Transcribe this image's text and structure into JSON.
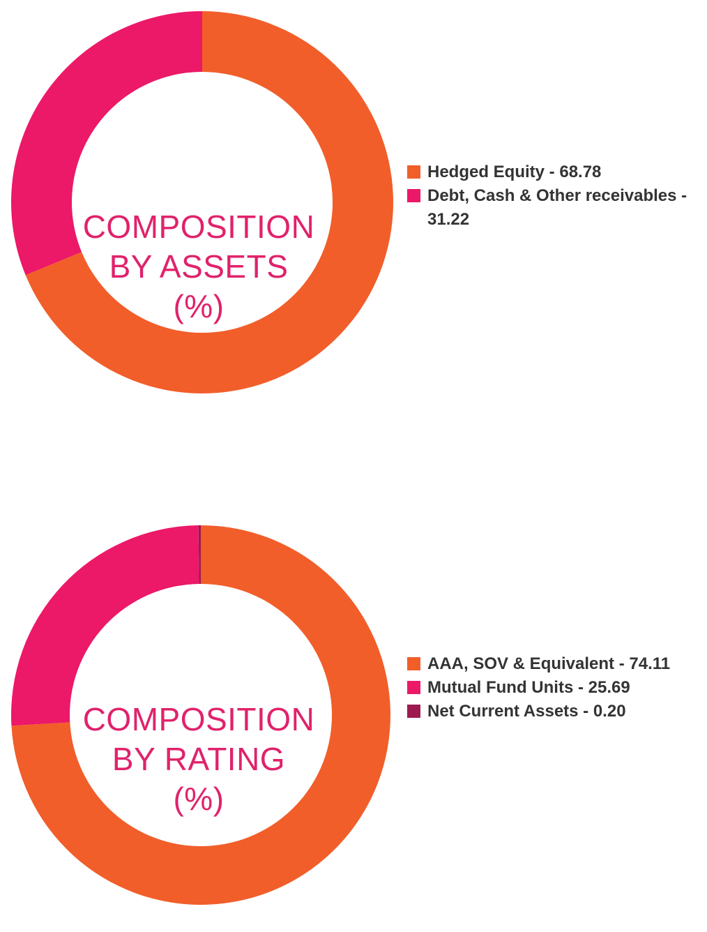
{
  "chart_data": [
    {
      "type": "pie",
      "title": [
        "COMPOSITION",
        "BY ASSETS",
        "(%)"
      ],
      "slices": [
        {
          "label": "Hedged Equity",
          "value": 68.78,
          "color": "#f15e2a",
          "legend_text": "Hedged Equity - 68.78"
        },
        {
          "label": "Debt, Cash & Other receivables",
          "value": 31.22,
          "color": "#ec1868",
          "legend_text": "Debt, Cash & Other receivables - 31.22"
        }
      ]
    },
    {
      "type": "pie",
      "title": [
        "COMPOSITION",
        "BY RATING",
        "(%)"
      ],
      "slices": [
        {
          "label": "AAA, SOV & Equivalent",
          "value": 74.11,
          "color": "#f15e2a",
          "legend_text": "AAA, SOV & Equivalent - 74.11"
        },
        {
          "label": "Mutual Fund Units",
          "value": 25.69,
          "color": "#ec1868",
          "legend_text": "Mutual Fund Units - 25.69"
        },
        {
          "label": "Net Current Assets",
          "value": 0.2,
          "color": "#9d1a4f",
          "legend_text": "Net Current Assets - 0.20"
        }
      ]
    }
  ]
}
